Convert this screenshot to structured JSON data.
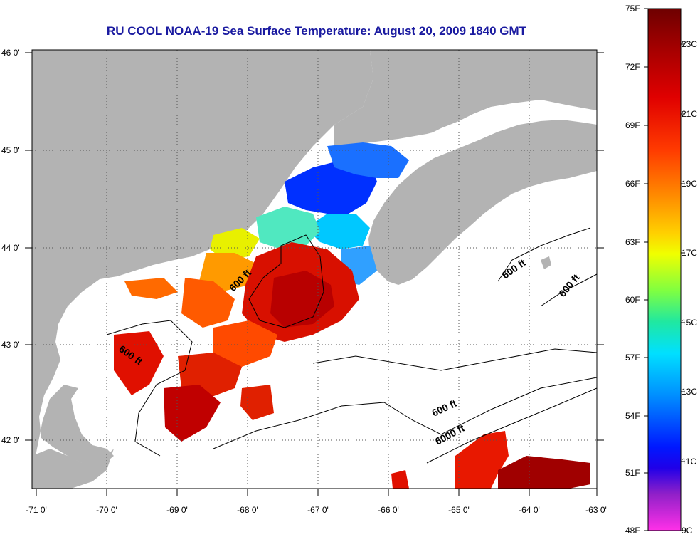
{
  "title": "RU COOL  NOAA-19  Sea Surface Temperature:  August 20, 2009 1840 GMT",
  "map": {
    "lon_range": [
      -71,
      -63
    ],
    "lat_range": [
      41.5,
      46
    ],
    "x_ticks": [
      {
        "value": -71,
        "label": "-71 0'"
      },
      {
        "value": -70,
        "label": "-70 0'"
      },
      {
        "value": -69,
        "label": "-69 0'"
      },
      {
        "value": -68,
        "label": "-68 0'"
      },
      {
        "value": -67,
        "label": "-67 0'"
      },
      {
        "value": -66,
        "label": "-66 0'"
      },
      {
        "value": -65,
        "label": "-65 0'"
      },
      {
        "value": -64,
        "label": "-64 0'"
      },
      {
        "value": -63,
        "label": "-63 0'"
      }
    ],
    "y_ticks": [
      {
        "value": 46,
        "label": "46 0'"
      },
      {
        "value": 45,
        "label": "45 0'"
      },
      {
        "value": 44,
        "label": "44 0'"
      },
      {
        "value": 43,
        "label": "43 0'"
      },
      {
        "value": 42,
        "label": "42 0'"
      }
    ],
    "contour_labels": [
      "600 ft",
      "600 ft",
      "600 ft",
      "600 ft",
      "600 ft",
      "6000 ft"
    ],
    "colors": {
      "land": "#b3b3b3",
      "no_data": "#ffffff",
      "grid": "#555555"
    }
  },
  "colorbar": {
    "fahrenheit": [
      "75F",
      "72F",
      "69F",
      "66F",
      "63F",
      "60F",
      "57F",
      "54F",
      "51F",
      "48F"
    ],
    "celsius": [
      "23C",
      "21C",
      "19C",
      "17C",
      "15C",
      "13C",
      "11C",
      "9C"
    ],
    "colors": [
      "#7a0000",
      "#c00000",
      "#ff2a00",
      "#ff8000",
      "#ffd000",
      "#e8ff00",
      "#80ff40",
      "#20e0a0",
      "#00d8ff",
      "#0090ff",
      "#0020ff",
      "#1a00e0",
      "#9020c0",
      "#ff40e0"
    ]
  }
}
